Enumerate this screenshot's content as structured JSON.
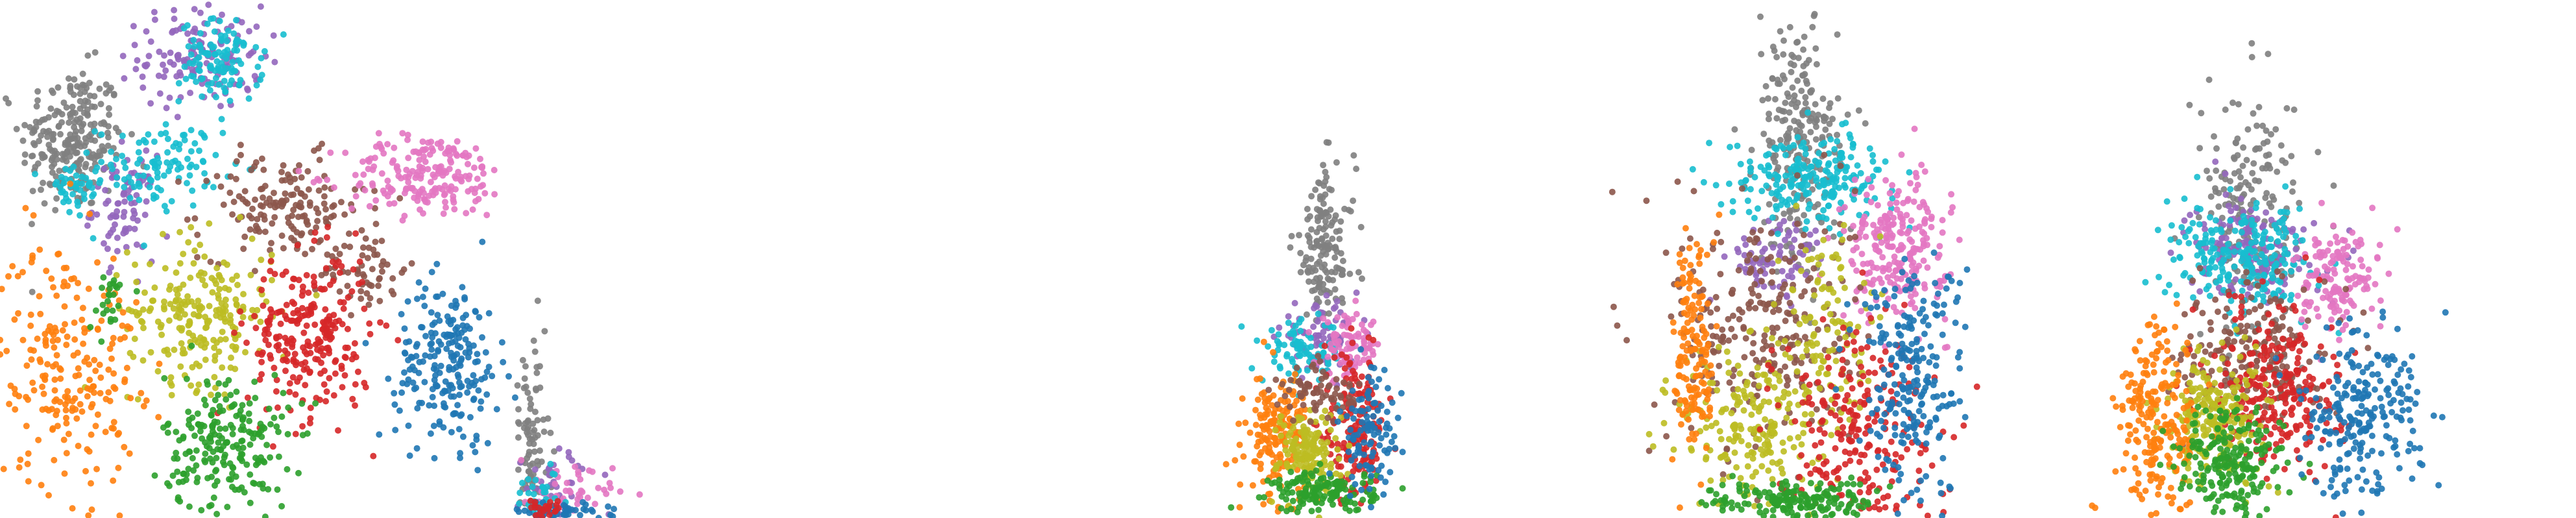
{
  "chart_data": [
    {
      "type": "scatter",
      "title": "",
      "xlabel": "",
      "ylabel": "",
      "axes_visible": false,
      "grid": false,
      "legend": "none",
      "xlim": [
        0,
        100
      ],
      "ylim": [
        0,
        100
      ],
      "series": [
        {
          "color": "#7f7f7f",
          "cx": 14,
          "cy": 73,
          "sx": 5,
          "sy": 7,
          "n": 240
        },
        {
          "color": "#9467bd",
          "cx": 39,
          "cy": 89,
          "sx": 6,
          "sy": 5,
          "n": 140
        },
        {
          "color": "#9467bd",
          "cx": 24,
          "cy": 60,
          "sx": 3,
          "sy": 5,
          "n": 80
        },
        {
          "color": "#17becf",
          "cx": 43,
          "cy": 88,
          "sx": 4,
          "sy": 4,
          "n": 110
        },
        {
          "color": "#17becf",
          "cx": 31,
          "cy": 68,
          "sx": 6,
          "sy": 4,
          "n": 110
        },
        {
          "color": "#17becf",
          "cx": 14,
          "cy": 63,
          "sx": 3,
          "sy": 3,
          "n": 40
        },
        {
          "color": "#8c564b",
          "cx": 55,
          "cy": 60,
          "sx": 8,
          "sy": 5,
          "n": 160
        },
        {
          "color": "#8c564b",
          "cx": 71,
          "cy": 48,
          "sx": 4,
          "sy": 4,
          "n": 60
        },
        {
          "color": "#e377c2",
          "cx": 83,
          "cy": 66,
          "sx": 8,
          "sy": 4,
          "n": 200
        },
        {
          "color": "#bcbd22",
          "cx": 39,
          "cy": 40,
          "sx": 7,
          "sy": 7,
          "n": 230
        },
        {
          "color": "#d62728",
          "cx": 60,
          "cy": 35,
          "sx": 6,
          "sy": 8,
          "n": 250
        },
        {
          "color": "#ff7f0e",
          "cx": 13,
          "cy": 30,
          "sx": 7,
          "sy": 12,
          "n": 230
        },
        {
          "color": "#2ca02c",
          "cx": 44,
          "cy": 14,
          "sx": 6,
          "sy": 7,
          "n": 220
        },
        {
          "color": "#2ca02c",
          "cx": 21,
          "cy": 42,
          "sx": 2,
          "sy": 3,
          "n": 25
        },
        {
          "color": "#1f77b4",
          "cx": 87,
          "cy": 30,
          "sx": 5,
          "sy": 8,
          "n": 220
        }
      ]
    },
    {
      "type": "scatter",
      "title": "",
      "xlabel": "",
      "ylabel": "",
      "axes_visible": false,
      "grid": false,
      "legend": "none",
      "xlim": [
        0,
        100
      ],
      "ylim": [
        0,
        100
      ],
      "series": [
        {
          "color": "#7f7f7f",
          "cx": 3,
          "cy": 14,
          "sx": 2,
          "sy": 10,
          "n": 90
        },
        {
          "color": "#9467bd",
          "cx": 8,
          "cy": 6,
          "sx": 4,
          "sy": 4,
          "n": 40
        },
        {
          "color": "#e377c2",
          "cx": 9,
          "cy": 4,
          "sx": 5,
          "sy": 3,
          "n": 60
        },
        {
          "color": "#17becf",
          "cx": 5,
          "cy": 4,
          "sx": 3,
          "sy": 3,
          "n": 35
        },
        {
          "color": "#1f77b4",
          "cx": 8,
          "cy": 1,
          "sx": 5,
          "sy": 1,
          "n": 70
        },
        {
          "color": "#d62728",
          "cx": 6,
          "cy": 1.5,
          "sx": 3,
          "sy": 1,
          "n": 30
        }
      ]
    },
    {
      "type": "scatter",
      "title": "",
      "xlabel": "",
      "ylabel": "",
      "axes_visible": false,
      "grid": false,
      "legend": "none",
      "xlim": [
        0,
        100
      ],
      "ylim": [
        0,
        100
      ],
      "series": [
        {
          "color": "#7f7f7f",
          "cx": 57,
          "cy": 52,
          "sx": 3,
          "sy": 8,
          "n": 150
        },
        {
          "color": "#9467bd",
          "cx": 56,
          "cy": 35,
          "sx": 4,
          "sy": 3,
          "n": 80
        },
        {
          "color": "#17becf",
          "cx": 53,
          "cy": 32,
          "sx": 4,
          "sy": 3,
          "n": 90
        },
        {
          "color": "#e377c2",
          "cx": 62,
          "cy": 33,
          "sx": 3,
          "sy": 3,
          "n": 80
        },
        {
          "color": "#d62728",
          "cx": 63,
          "cy": 17,
          "sx": 3,
          "sy": 7,
          "n": 180
        },
        {
          "color": "#ff7f0e",
          "cx": 48,
          "cy": 16,
          "sx": 3,
          "sy": 6,
          "n": 180
        },
        {
          "color": "#bcbd22",
          "cx": 54,
          "cy": 13,
          "sx": 3,
          "sy": 4,
          "n": 150
        },
        {
          "color": "#8c564b",
          "cx": 56,
          "cy": 24,
          "sx": 4,
          "sy": 3,
          "n": 70
        },
        {
          "color": "#2ca02c",
          "cx": 57,
          "cy": 5,
          "sx": 5,
          "sy": 2,
          "n": 150
        },
        {
          "color": "#1f77b4",
          "cx": 66,
          "cy": 16,
          "sx": 3,
          "sy": 6,
          "n": 100
        }
      ]
    },
    {
      "type": "scatter",
      "title": "",
      "xlabel": "",
      "ylabel": "",
      "axes_visible": false,
      "grid": false,
      "legend": "none",
      "xlim": [
        0,
        100
      ],
      "ylim": [
        0,
        100
      ],
      "series": [
        {
          "color": "#7f7f7f",
          "cx": 49,
          "cy": 72,
          "sx": 4,
          "sy": 12,
          "n": 240
        },
        {
          "color": "#9467bd",
          "cx": 45,
          "cy": 50,
          "sx": 5,
          "sy": 4,
          "n": 80
        },
        {
          "color": "#17becf",
          "cx": 52,
          "cy": 66,
          "sx": 8,
          "sy": 4,
          "n": 220
        },
        {
          "color": "#e377c2",
          "cx": 68,
          "cy": 52,
          "sx": 5,
          "sy": 7,
          "n": 240
        },
        {
          "color": "#8c564b",
          "cx": 42,
          "cy": 37,
          "sx": 9,
          "sy": 12,
          "n": 260
        },
        {
          "color": "#bcbd22",
          "cx": 40,
          "cy": 18,
          "sx": 7,
          "sy": 8,
          "n": 200
        },
        {
          "color": "#bcbd22",
          "cx": 54,
          "cy": 36,
          "sx": 4,
          "sy": 10,
          "n": 120
        },
        {
          "color": "#d62728",
          "cx": 60,
          "cy": 18,
          "sx": 8,
          "sy": 10,
          "n": 240
        },
        {
          "color": "#1f77b4",
          "cx": 71,
          "cy": 27,
          "sx": 5,
          "sy": 12,
          "n": 230
        },
        {
          "color": "#2ca02c",
          "cx": 48,
          "cy": 3,
          "sx": 8,
          "sy": 2,
          "n": 180
        },
        {
          "color": "#ff7f0e",
          "cx": 29,
          "cy": 33,
          "sx": 2,
          "sy": 12,
          "n": 150
        }
      ]
    },
    {
      "type": "scatter",
      "title": "",
      "xlabel": "",
      "ylabel": "",
      "axes_visible": false,
      "grid": false,
      "legend": "none",
      "xlim": [
        0,
        100
      ],
      "ylim": [
        0,
        100
      ],
      "series": [
        {
          "color": "#7f7f7f",
          "cx": 37,
          "cy": 58,
          "sx": 5,
          "sy": 12,
          "n": 200
        },
        {
          "color": "#9467bd",
          "cx": 37,
          "cy": 52,
          "sx": 6,
          "sy": 5,
          "n": 150
        },
        {
          "color": "#17becf",
          "cx": 35,
          "cy": 50,
          "sx": 7,
          "sy": 5,
          "n": 230
        },
        {
          "color": "#e377c2",
          "cx": 54,
          "cy": 46,
          "sx": 4,
          "sy": 5,
          "n": 140
        },
        {
          "color": "#8c564b",
          "cx": 37,
          "cy": 32,
          "sx": 7,
          "sy": 7,
          "n": 200
        },
        {
          "color": "#d62728",
          "cx": 42,
          "cy": 25,
          "sx": 6,
          "sy": 8,
          "n": 260
        },
        {
          "color": "#bcbd22",
          "cx": 30,
          "cy": 20,
          "sx": 5,
          "sy": 6,
          "n": 220
        },
        {
          "color": "#ff7f0e",
          "cx": 19,
          "cy": 18,
          "sx": 4,
          "sy": 10,
          "n": 220
        },
        {
          "color": "#2ca02c",
          "cx": 33,
          "cy": 10,
          "sx": 5,
          "sy": 6,
          "n": 220
        },
        {
          "color": "#1f77b4",
          "cx": 58,
          "cy": 20,
          "sx": 6,
          "sy": 8,
          "n": 230
        }
      ]
    }
  ]
}
